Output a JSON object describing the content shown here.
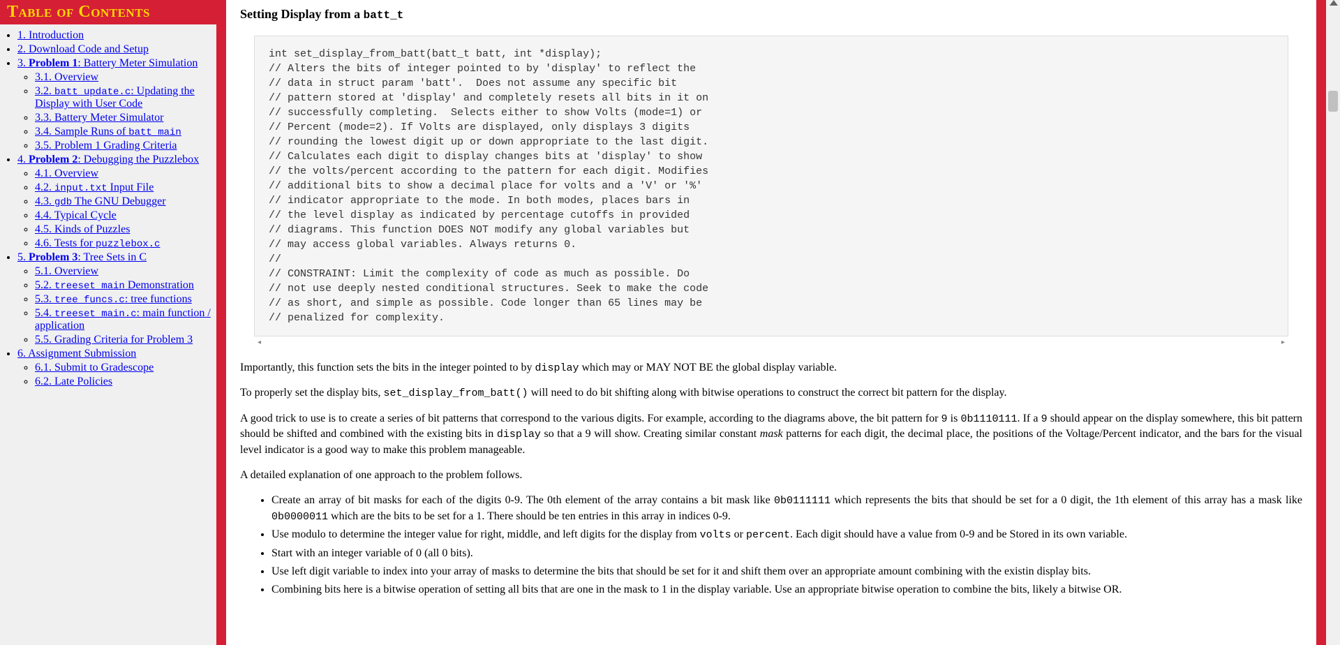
{
  "toc": {
    "header": "Table of Contents",
    "items": [
      {
        "label": "1. Introduction"
      },
      {
        "label": "2. Download Code and Setup"
      },
      {
        "label_pre": "3. ",
        "label_bold": "Problem 1",
        "label_post": ": Battery Meter Simulation",
        "children": [
          {
            "label": "3.1. Overview"
          },
          {
            "label_pre": "3.2. ",
            "label_code": "batt_update.c",
            "label_post": ": Updating the Display with User Code"
          },
          {
            "label": "3.3. Battery Meter Simulator"
          },
          {
            "label_pre": "3.4. Sample Runs of ",
            "label_code": "batt_main"
          },
          {
            "label": "3.5. Problem 1 Grading Criteria"
          }
        ]
      },
      {
        "label_pre": "4. ",
        "label_bold": "Problem 2",
        "label_post": ": Debugging the Puzzlebox",
        "children": [
          {
            "label": "4.1. Overview"
          },
          {
            "label_pre": "4.2. ",
            "label_code": "input.txt",
            "label_post": " Input File"
          },
          {
            "label_pre": "4.3. ",
            "label_code": "gdb",
            "label_post": " The GNU Debugger"
          },
          {
            "label": "4.4. Typical Cycle"
          },
          {
            "label": "4.5. Kinds of Puzzles"
          },
          {
            "label_pre": "4.6. Tests for ",
            "label_code": "puzzlebox.c"
          }
        ]
      },
      {
        "label_pre": "5. ",
        "label_bold": "Problem 3",
        "label_post": ": Tree Sets in C",
        "children": [
          {
            "label": "5.1. Overview"
          },
          {
            "label_pre": "5.2. ",
            "label_code": "treeset_main",
            "label_post": " Demonstration"
          },
          {
            "label_pre": "5.3. ",
            "label_code": "tree_funcs.c",
            "label_post": ": tree functions"
          },
          {
            "label_pre": "5.4. ",
            "label_code": "treeset_main.c",
            "label_post": ": main function / application"
          },
          {
            "label": "5.5. Grading Criteria for Problem 3"
          }
        ]
      },
      {
        "label": "6. Assignment Submission",
        "children": [
          {
            "label": "6.1. Submit to Gradescope"
          },
          {
            "label": "6.2. Late Policies"
          }
        ]
      }
    ]
  },
  "content": {
    "heading_pre": "Setting Display from a ",
    "heading_code": "batt_t",
    "code_block": "int set_display_from_batt(batt_t batt, int *display);\n// Alters the bits of integer pointed to by 'display' to reflect the\n// data in struct param 'batt'.  Does not assume any specific bit\n// pattern stored at 'display' and completely resets all bits in it on\n// successfully completing.  Selects either to show Volts (mode=1) or\n// Percent (mode=2). If Volts are displayed, only displays 3 digits\n// rounding the lowest digit up or down appropriate to the last digit.\n// Calculates each digit to display changes bits at 'display' to show\n// the volts/percent according to the pattern for each digit. Modifies\n// additional bits to show a decimal place for volts and a 'V' or '%'\n// indicator appropriate to the mode. In both modes, places bars in\n// the level display as indicated by percentage cutoffs in provided\n// diagrams. This function DOES NOT modify any global variables but\n// may access global variables. Always returns 0.\n//\n// CONSTRAINT: Limit the complexity of code as much as possible. Do\n// not use deeply nested conditional structures. Seek to make the code\n// as short, and simple as possible. Code longer than 65 lines may be\n// penalized for complexity.",
    "p1_a": "Importantly, this function sets the bits in the integer pointed to by ",
    "p1_code": "display",
    "p1_b": " which may or MAY NOT BE the global display variable.",
    "p2_a": "To properly set the display bits, ",
    "p2_code": "set_display_from_batt()",
    "p2_b": " will need to do bit shifting along with bitwise operations to construct the correct bit pattern for the display.",
    "p3_a": "A good trick to use is to create a series of bit patterns that correspond to the various digits. For example, according to the diagrams above, the bit pattern for ",
    "p3_code1": "9",
    "p3_b": " is ",
    "p3_code2": "0b1110111",
    "p3_c": ". If a ",
    "p3_code3": "9",
    "p3_d": " should appear on the display somewhere, this bit pattern should be shifted and combined with the existing bits in ",
    "p3_code4": "display",
    "p3_e": " so that a 9 will show. Creating similar constant ",
    "p3_em": "mask",
    "p3_f": " patterns for each digit, the decimal place, the positions of the Voltage/Percent indicator, and the bars for the visual level indicator is a good way to make this problem manageable.",
    "p4": "A detailed explanation of one approach to the problem follows.",
    "bullets": [
      {
        "a": "Create an array of bit masks for each of the digits 0-9. The 0th element of the array contains a bit mask like ",
        "code1": "0b0111111",
        "b": " which represents the bits that should be set for a 0 digit, the 1th element of this array has a mask like ",
        "code2": "0b0000011",
        "c": " which are the bits to be set for a 1. There should be ten entries in this array in indices 0-9."
      },
      {
        "a": "Use modulo to determine the integer value for right, middle, and left digits for the display from ",
        "code1": "volts",
        "b": " or ",
        "code2": "percent",
        "c": ". Each digit should have a value from 0-9 and be Stored in its own variable."
      },
      {
        "a": "Start with an integer variable of 0 (all 0 bits)."
      },
      {
        "a": "Use left digit variable to index into your array of masks to determine the bits that should be set for it and shift them over an appropriate amount combining with the existin display bits."
      },
      {
        "a": "Combining bits here is a bitwise operation of setting all bits that are one in the mask to 1 in the display variable. Use an appropriate bitwise operation to combine the bits, likely a bitwise OR."
      }
    ]
  },
  "colors": {
    "red": "#d51f35",
    "gold": "#ffd700",
    "link": "#0000ee",
    "codebg": "#f5f5f5"
  }
}
